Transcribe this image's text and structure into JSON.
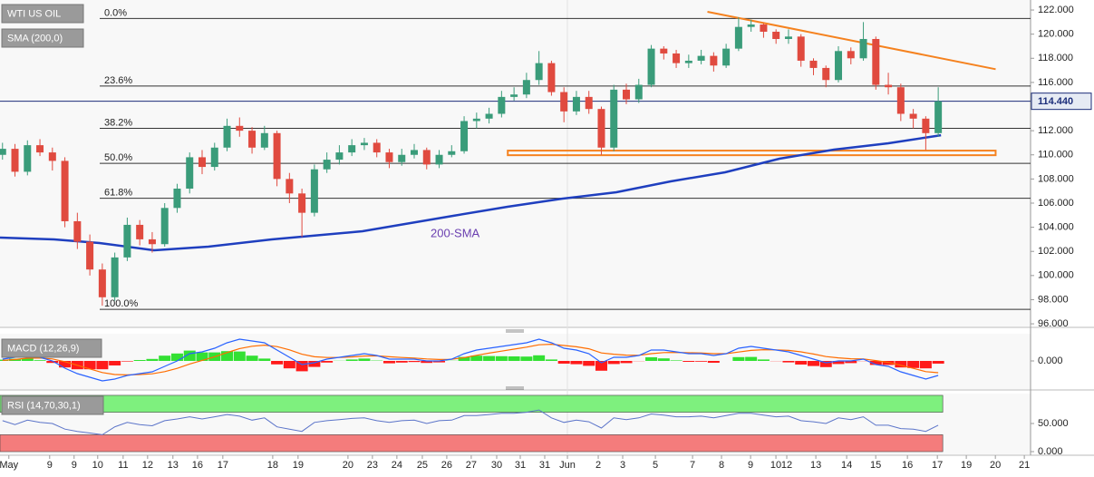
{
  "chart_data": [
    {
      "type": "candlestick",
      "legend": [
        "WTI US OIL",
        "SMA (200,0)"
      ],
      "xlim": [
        -0.2,
        82.4
      ],
      "ylim": [
        95.78,
        122.83
      ],
      "yticks": [
        {
          "value": 96,
          "label": "96.000"
        },
        {
          "value": 98,
          "label": "98.000"
        },
        {
          "value": 100,
          "label": "100.000"
        },
        {
          "value": 102,
          "label": "102.000"
        },
        {
          "value": 104,
          "label": "104.000"
        },
        {
          "value": 106,
          "label": "106.000"
        },
        {
          "value": 108,
          "label": "108.000"
        },
        {
          "value": 110,
          "label": "110.000"
        },
        {
          "value": 112,
          "label": "112.000"
        },
        {
          "value": 114,
          "label": "114.000"
        },
        {
          "value": 116,
          "label": "116.000"
        },
        {
          "value": 118,
          "label": "118.000"
        },
        {
          "value": 120,
          "label": "120.000"
        },
        {
          "value": 122,
          "label": "122.000"
        }
      ],
      "up_color": "#3a9c7a",
      "down_color": "#e04a3f",
      "x": [
        0,
        1,
        2,
        3,
        4,
        5,
        6,
        7,
        8,
        9,
        10,
        11,
        12,
        13,
        14,
        15,
        16,
        17,
        18,
        19,
        20,
        21,
        22,
        23,
        24,
        25,
        26,
        27,
        28,
        29,
        30,
        31,
        32,
        33,
        34,
        35,
        36,
        37,
        38,
        39,
        40,
        41,
        42,
        43,
        44,
        45,
        46,
        47,
        48,
        49,
        50,
        51,
        52,
        53,
        54,
        55,
        56,
        57,
        58,
        59,
        60,
        61,
        62,
        63,
        64,
        65,
        66,
        67,
        68,
        69,
        70,
        71,
        72,
        73,
        74,
        75
      ],
      "open": [
        110.0,
        110.5,
        108.6,
        110.8,
        110.2,
        109.5,
        104.5,
        102.8,
        100.5,
        98.2,
        101.5,
        104.2,
        103.0,
        102.6,
        105.6,
        107.2,
        109.8,
        109.0,
        110.6,
        112.4,
        112.0,
        110.6,
        111.8,
        108.0,
        106.8,
        105.2,
        108.8,
        109.6,
        110.2,
        110.8,
        111.0,
        110.2,
        109.4,
        110.0,
        110.4,
        109.2,
        110.0,
        110.3,
        112.8,
        113.0,
        113.4,
        114.8,
        115.0,
        116.2,
        117.6,
        115.2,
        113.6,
        114.8,
        113.8,
        110.6,
        115.4,
        114.6,
        115.8,
        118.8,
        118.4,
        117.6,
        117.8,
        118.2,
        117.4,
        118.8,
        120.6,
        120.8,
        120.2,
        119.6,
        119.8,
        117.8,
        117.2,
        116.2,
        118.6,
        118.0,
        119.6,
        115.8,
        115.6,
        113.4,
        113.0,
        111.8
      ],
      "high": [
        111.0,
        110.9,
        111.2,
        111.3,
        110.6,
        109.8,
        105.2,
        103.4,
        101.0,
        101.9,
        104.8,
        104.6,
        103.6,
        106.0,
        107.6,
        110.2,
        110.4,
        111.0,
        113.0,
        113.1,
        112.3,
        112.4,
        112.0,
        108.5,
        107.2,
        109.2,
        110.2,
        110.8,
        111.3,
        111.4,
        111.3,
        110.5,
        110.5,
        110.9,
        110.6,
        110.4,
        110.8,
        113.2,
        113.5,
        113.9,
        115.3,
        115.6,
        116.8,
        118.6,
        117.8,
        115.6,
        115.3,
        115.3,
        114.0,
        115.8,
        115.9,
        116.3,
        119.1,
        119.0,
        118.7,
        118.3,
        118.7,
        118.5,
        119.2,
        121.4,
        121.2,
        120.9,
        120.4,
        120.4,
        120.0,
        118.0,
        117.4,
        119.0,
        118.9,
        121.0,
        119.8,
        116.8,
        115.9,
        113.8,
        113.2,
        115.6
      ],
      "low": [
        109.6,
        108.2,
        108.3,
        109.9,
        108.7,
        104.0,
        102.2,
        100.0,
        97.5,
        97.9,
        101.2,
        102.5,
        101.9,
        102.4,
        105.2,
        106.8,
        108.4,
        108.7,
        110.3,
        111.5,
        110.1,
        110.4,
        107.4,
        106.0,
        103.2,
        104.9,
        108.5,
        109.2,
        109.9,
        110.4,
        109.8,
        108.9,
        109.1,
        109.7,
        108.8,
        108.9,
        109.8,
        110.1,
        112.2,
        112.6,
        113.1,
        114.5,
        114.7,
        115.8,
        114.9,
        112.7,
        113.3,
        113.4,
        110.0,
        110.3,
        114.2,
        114.3,
        115.6,
        117.9,
        117.2,
        117.2,
        117.5,
        116.9,
        117.2,
        118.6,
        120.2,
        119.7,
        119.2,
        119.2,
        117.3,
        116.6,
        115.6,
        116.0,
        117.5,
        117.8,
        115.4,
        115.0,
        112.8,
        112.2,
        110.4,
        111.5
      ],
      "close": [
        110.5,
        108.6,
        110.8,
        110.2,
        109.5,
        104.5,
        102.8,
        100.5,
        98.2,
        101.5,
        104.2,
        103.0,
        102.6,
        105.6,
        107.2,
        109.8,
        109.0,
        110.6,
        112.4,
        112.0,
        110.6,
        111.8,
        108.0,
        106.8,
        105.2,
        108.8,
        109.6,
        110.2,
        110.8,
        111.0,
        110.2,
        109.4,
        110.0,
        110.4,
        109.2,
        110.0,
        110.3,
        112.8,
        113.0,
        113.4,
        114.8,
        115.0,
        116.2,
        117.6,
        115.2,
        113.6,
        114.8,
        113.8,
        110.6,
        115.4,
        114.6,
        115.8,
        118.8,
        118.4,
        117.6,
        117.8,
        118.2,
        117.4,
        118.8,
        120.6,
        120.8,
        120.2,
        119.6,
        119.8,
        117.8,
        117.2,
        116.2,
        118.6,
        118.0,
        119.6,
        115.8,
        115.6,
        113.4,
        113.0,
        111.8,
        114.44
      ],
      "last_price": {
        "value": 114.44,
        "label": "114.440",
        "color": "#1c2e7a"
      },
      "fib_levels": [
        {
          "label": "0.0%",
          "value": 121.3
        },
        {
          "label": "23.6%",
          "value": 115.7
        },
        {
          "label": "38.2%",
          "value": 112.2
        },
        {
          "label": "50.0%",
          "value": 109.3
        },
        {
          "label": "61.8%",
          "value": 106.4
        },
        {
          "label": "100.0%",
          "value": 97.2
        }
      ],
      "fib_color": "#333333",
      "sma": {
        "name": "200-SMA",
        "color": "#1f3fbf",
        "x": [
          -0.2,
          4.14,
          7.78,
          12.14,
          16.5,
          21.58,
          28.85,
          36.12,
          40.48,
          44.84,
          49.2,
          53.56,
          57.92,
          62.28,
          66.64,
          71.0,
          75.22
        ],
        "values": [
          103.14,
          102.99,
          102.69,
          102.09,
          102.39,
          102.99,
          103.67,
          104.95,
          105.7,
          106.37,
          106.9,
          107.8,
          108.55,
          109.68,
          110.43,
          110.96,
          111.63
        ]
      },
      "trendline": {
        "color": "#f5821f",
        "x": [
          56.5,
          79.6
        ],
        "y": [
          121.85,
          117.1
        ]
      },
      "support_zone": {
        "color": "#f5821f",
        "x": [
          40.5,
          79.6
        ],
        "y": [
          109.97,
          110.35
        ]
      }
    },
    {
      "type": "macd",
      "label": "MACD (12,26,9)",
      "xlim": [
        -0.2,
        82.4
      ],
      "ylim": [
        -1.6,
        1.6
      ],
      "yticks": [
        {
          "value": 0,
          "label": "0.000"
        }
      ],
      "macd_line": {
        "color": "#2962ff",
        "values": [
          0.1,
          0.2,
          0.3,
          0.2,
          0.0,
          -0.4,
          -0.7,
          -0.9,
          -1.1,
          -1.0,
          -0.8,
          -0.7,
          -0.6,
          -0.3,
          0.0,
          0.4,
          0.5,
          0.7,
          1.0,
          1.2,
          1.1,
          1.0,
          0.6,
          0.2,
          -0.2,
          -0.1,
          0.1,
          0.2,
          0.3,
          0.4,
          0.3,
          0.1,
          0.1,
          0.1,
          0.0,
          0.0,
          0.1,
          0.4,
          0.6,
          0.7,
          0.8,
          0.9,
          1.0,
          1.2,
          1.0,
          0.7,
          0.6,
          0.4,
          -0.1,
          0.2,
          0.2,
          0.3,
          0.6,
          0.6,
          0.5,
          0.4,
          0.4,
          0.3,
          0.4,
          0.7,
          0.8,
          0.7,
          0.6,
          0.5,
          0.3,
          0.1,
          -0.1,
          0.0,
          0.0,
          0.1,
          -0.2,
          -0.3,
          -0.6,
          -0.8,
          -1.0,
          -0.8
        ]
      },
      "signal_line": {
        "color": "#ff6d00",
        "values": [
          0.03,
          0.08,
          0.15,
          0.16,
          0.11,
          -0.04,
          -0.24,
          -0.44,
          -0.64,
          -0.75,
          -0.77,
          -0.75,
          -0.71,
          -0.59,
          -0.41,
          -0.17,
          0.03,
          0.23,
          0.46,
          0.68,
          0.81,
          0.87,
          0.79,
          0.61,
          0.37,
          0.23,
          0.19,
          0.19,
          0.22,
          0.27,
          0.28,
          0.23,
          0.19,
          0.16,
          0.11,
          0.08,
          0.09,
          0.18,
          0.31,
          0.43,
          0.54,
          0.65,
          0.76,
          0.89,
          0.92,
          0.85,
          0.78,
          0.67,
          0.44,
          0.37,
          0.32,
          0.31,
          0.4,
          0.46,
          0.47,
          0.45,
          0.44,
          0.4,
          0.4,
          0.49,
          0.58,
          0.62,
          0.61,
          0.58,
          0.5,
          0.38,
          0.24,
          0.17,
          0.12,
          0.11,
          0.02,
          -0.08,
          -0.24,
          -0.41,
          -0.59,
          -0.65
        ]
      },
      "histogram": {
        "up_color": "#33e033",
        "down_color": "#ff1a1a",
        "values": [
          0.07,
          0.12,
          0.15,
          0.04,
          -0.11,
          -0.36,
          -0.46,
          -0.46,
          -0.46,
          -0.25,
          -0.03,
          0.05,
          0.11,
          0.29,
          0.41,
          0.57,
          0.47,
          0.47,
          0.54,
          0.52,
          0.29,
          0.13,
          -0.19,
          -0.41,
          -0.57,
          -0.33,
          -0.09,
          0.01,
          0.08,
          0.13,
          0.02,
          -0.13,
          -0.09,
          -0.06,
          -0.11,
          -0.08,
          0.01,
          0.22,
          0.29,
          0.27,
          0.26,
          0.25,
          0.24,
          0.31,
          0.08,
          -0.15,
          -0.18,
          -0.27,
          -0.54,
          -0.17,
          -0.12,
          -0.01,
          0.2,
          0.14,
          0.03,
          -0.05,
          -0.04,
          -0.1,
          0.0,
          0.21,
          0.22,
          0.08,
          -0.01,
          -0.08,
          -0.2,
          -0.28,
          -0.34,
          -0.17,
          -0.12,
          -0.01,
          -0.22,
          -0.22,
          -0.36,
          -0.39,
          -0.41,
          -0.15
        ]
      }
    },
    {
      "type": "rsi",
      "label": "RSI (14,70,30,1)",
      "xlim": [
        -0.2,
        82.4
      ],
      "ylim": [
        -3.2,
        103.2
      ],
      "yticks": [
        {
          "value": 50,
          "label": "50.000"
        },
        {
          "value": 0,
          "label": "0.000"
        }
      ],
      "bands": [
        {
          "range": [
            70,
            100
          ],
          "color": "#7ef07e"
        },
        {
          "range": [
            0,
            30
          ],
          "color": "#f47c7c"
        }
      ],
      "color": "#5b74c9",
      "values": [
        55,
        48,
        56,
        52,
        50,
        40,
        36,
        33,
        30,
        44,
        52,
        48,
        46,
        55,
        58,
        62,
        58,
        62,
        66,
        63,
        56,
        60,
        44,
        40,
        36,
        52,
        55,
        57,
        59,
        60,
        55,
        52,
        55,
        56,
        50,
        55,
        56,
        64,
        64,
        66,
        68,
        68,
        70,
        74,
        60,
        52,
        56,
        53,
        42,
        60,
        57,
        60,
        67,
        65,
        62,
        62,
        63,
        60,
        64,
        68,
        68,
        65,
        62,
        63,
        55,
        53,
        50,
        60,
        57,
        62,
        47,
        47,
        41,
        40,
        36,
        47
      ],
      "xticks": [
        {
          "value": 0.51,
          "label": "May"
        },
        {
          "value": 3.78,
          "label": "9"
        },
        {
          "value": 5.74,
          "label": "9"
        },
        {
          "value": 7.63,
          "label": "10"
        },
        {
          "value": 9.67,
          "label": "11"
        },
        {
          "value": 11.63,
          "label": "12"
        },
        {
          "value": 13.66,
          "label": "13"
        },
        {
          "value": 15.63,
          "label": "16"
        },
        {
          "value": 17.66,
          "label": "17"
        },
        {
          "value": 21.66,
          "label": "18"
        },
        {
          "value": 23.69,
          "label": "19"
        },
        {
          "value": 27.69,
          "label": "20"
        },
        {
          "value": 29.65,
          "label": "23"
        },
        {
          "value": 31.61,
          "label": "24"
        },
        {
          "value": 33.65,
          "label": "25"
        },
        {
          "value": 35.61,
          "label": "26"
        },
        {
          "value": 37.57,
          "label": "27"
        },
        {
          "value": 39.61,
          "label": "30"
        },
        {
          "value": 41.5,
          "label": "31"
        },
        {
          "value": 43.46,
          "label": "31"
        },
        {
          "value": 45.28,
          "label": "Jun"
        },
        {
          "value": 47.75,
          "label": "2"
        },
        {
          "value": 49.71,
          "label": "3"
        },
        {
          "value": 52.33,
          "label": "5"
        },
        {
          "value": 55.31,
          "label": "7"
        },
        {
          "value": 57.63,
          "label": "8"
        },
        {
          "value": 59.96,
          "label": "9"
        },
        {
          "value": 61.99,
          "label": "10"
        },
        {
          "value": 62.86,
          "label": "12"
        },
        {
          "value": 65.19,
          "label": "13"
        },
        {
          "value": 67.66,
          "label": "14"
        },
        {
          "value": 69.99,
          "label": "15"
        },
        {
          "value": 72.53,
          "label": "16"
        },
        {
          "value": 74.93,
          "label": "17"
        },
        {
          "value": 77.25,
          "label": "19"
        },
        {
          "value": 79.58,
          "label": "20"
        },
        {
          "value": 81.9,
          "label": "21"
        }
      ]
    }
  ]
}
